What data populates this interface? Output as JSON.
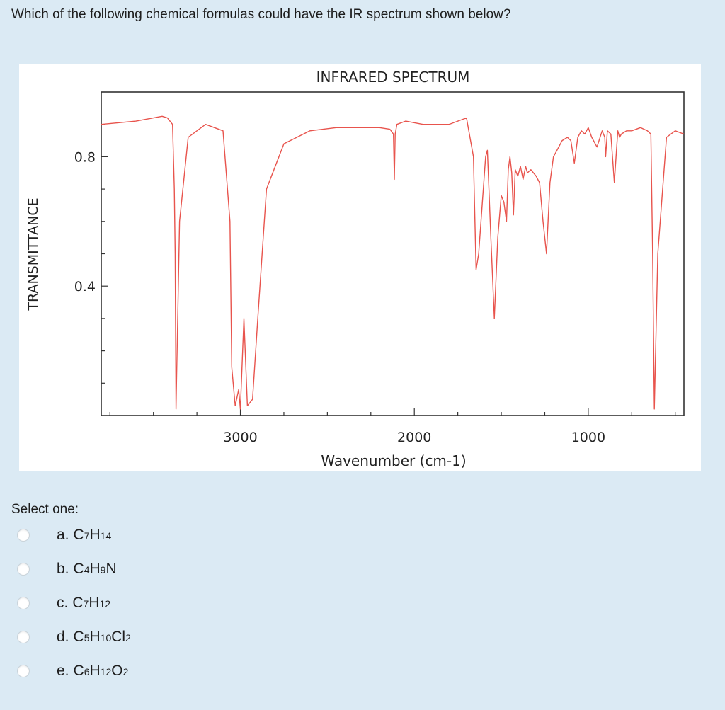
{
  "question": "Which of the following chemical formulas could have the IR spectrum shown below?",
  "spectrum": {
    "title": "INFRARED SPECTRUM",
    "xlabel": "Wavenumber (cm-1)",
    "ylabel": "TRANSMITTANCE",
    "x_tick_labels": [
      "3000",
      "2000",
      "1000"
    ],
    "y_tick_labels": [
      "0.8",
      "0.4"
    ],
    "line_color": "#e8544d"
  },
  "chart_data": {
    "type": "line",
    "title": "INFRARED SPECTRUM",
    "xlabel": "Wavenumber (cm-1)",
    "ylabel": "TRANSMITTANCE",
    "xlim": [
      3800,
      450
    ],
    "ylim": [
      0,
      1
    ],
    "x_ticks": [
      3000,
      2000,
      1000
    ],
    "y_ticks": [
      0.8,
      0.4
    ],
    "grid": false,
    "series": [
      {
        "x": [
          3800,
          3600,
          3450,
          3420,
          3390,
          3380,
          3375,
          3370,
          3350,
          3300,
          3200,
          3100,
          3060,
          3050,
          3030,
          3010,
          3000,
          2980,
          2960,
          2930,
          2900,
          2850,
          2750,
          2600,
          2450,
          2300,
          2200,
          2140,
          2120,
          2115,
          2110,
          2100,
          2050,
          1950,
          1850,
          1800,
          1750,
          1700,
          1680,
          1660,
          1645,
          1630,
          1610,
          1590,
          1580,
          1560,
          1540,
          1520,
          1500,
          1485,
          1470,
          1460,
          1450,
          1440,
          1430,
          1420,
          1405,
          1390,
          1375,
          1360,
          1350,
          1330,
          1300,
          1280,
          1260,
          1240,
          1220,
          1200,
          1180,
          1150,
          1120,
          1100,
          1080,
          1060,
          1040,
          1020,
          1000,
          980,
          950,
          920,
          905,
          900,
          890,
          870,
          850,
          830,
          820,
          810,
          780,
          750,
          700,
          660,
          640,
          630,
          620,
          600,
          550,
          500,
          450
        ],
        "y": [
          0.9,
          0.91,
          0.925,
          0.92,
          0.9,
          0.7,
          0.5,
          0.02,
          0.6,
          0.86,
          0.9,
          0.88,
          0.6,
          0.15,
          0.03,
          0.08,
          0.02,
          0.3,
          0.03,
          0.05,
          0.3,
          0.7,
          0.84,
          0.88,
          0.89,
          0.89,
          0.89,
          0.885,
          0.87,
          0.73,
          0.87,
          0.9,
          0.91,
          0.9,
          0.9,
          0.9,
          0.91,
          0.92,
          0.86,
          0.8,
          0.45,
          0.5,
          0.65,
          0.8,
          0.82,
          0.55,
          0.3,
          0.55,
          0.68,
          0.66,
          0.6,
          0.76,
          0.8,
          0.75,
          0.62,
          0.76,
          0.74,
          0.77,
          0.73,
          0.77,
          0.75,
          0.76,
          0.74,
          0.72,
          0.6,
          0.5,
          0.72,
          0.8,
          0.82,
          0.85,
          0.86,
          0.85,
          0.78,
          0.86,
          0.88,
          0.87,
          0.89,
          0.86,
          0.83,
          0.88,
          0.86,
          0.8,
          0.88,
          0.87,
          0.72,
          0.88,
          0.86,
          0.87,
          0.88,
          0.88,
          0.89,
          0.88,
          0.87,
          0.5,
          0.02,
          0.5,
          0.86,
          0.88,
          0.87
        ]
      }
    ]
  },
  "select_prompt": "Select one:",
  "options": [
    {
      "letter": "a.",
      "parts": [
        [
          "C",
          "7"
        ],
        [
          "H",
          "14"
        ]
      ]
    },
    {
      "letter": "b.",
      "parts": [
        [
          "C",
          "4"
        ],
        [
          "H",
          "9"
        ],
        [
          "N",
          ""
        ]
      ]
    },
    {
      "letter": "c.",
      "parts": [
        [
          "C",
          "7"
        ],
        [
          "H",
          "12"
        ]
      ]
    },
    {
      "letter": "d.",
      "parts": [
        [
          "C",
          "5"
        ],
        [
          "H",
          "10"
        ],
        [
          "Cl",
          "2"
        ]
      ]
    },
    {
      "letter": "e.",
      "parts": [
        [
          "C",
          "6"
        ],
        [
          "H",
          "12"
        ],
        [
          "O",
          "2"
        ]
      ]
    }
  ]
}
